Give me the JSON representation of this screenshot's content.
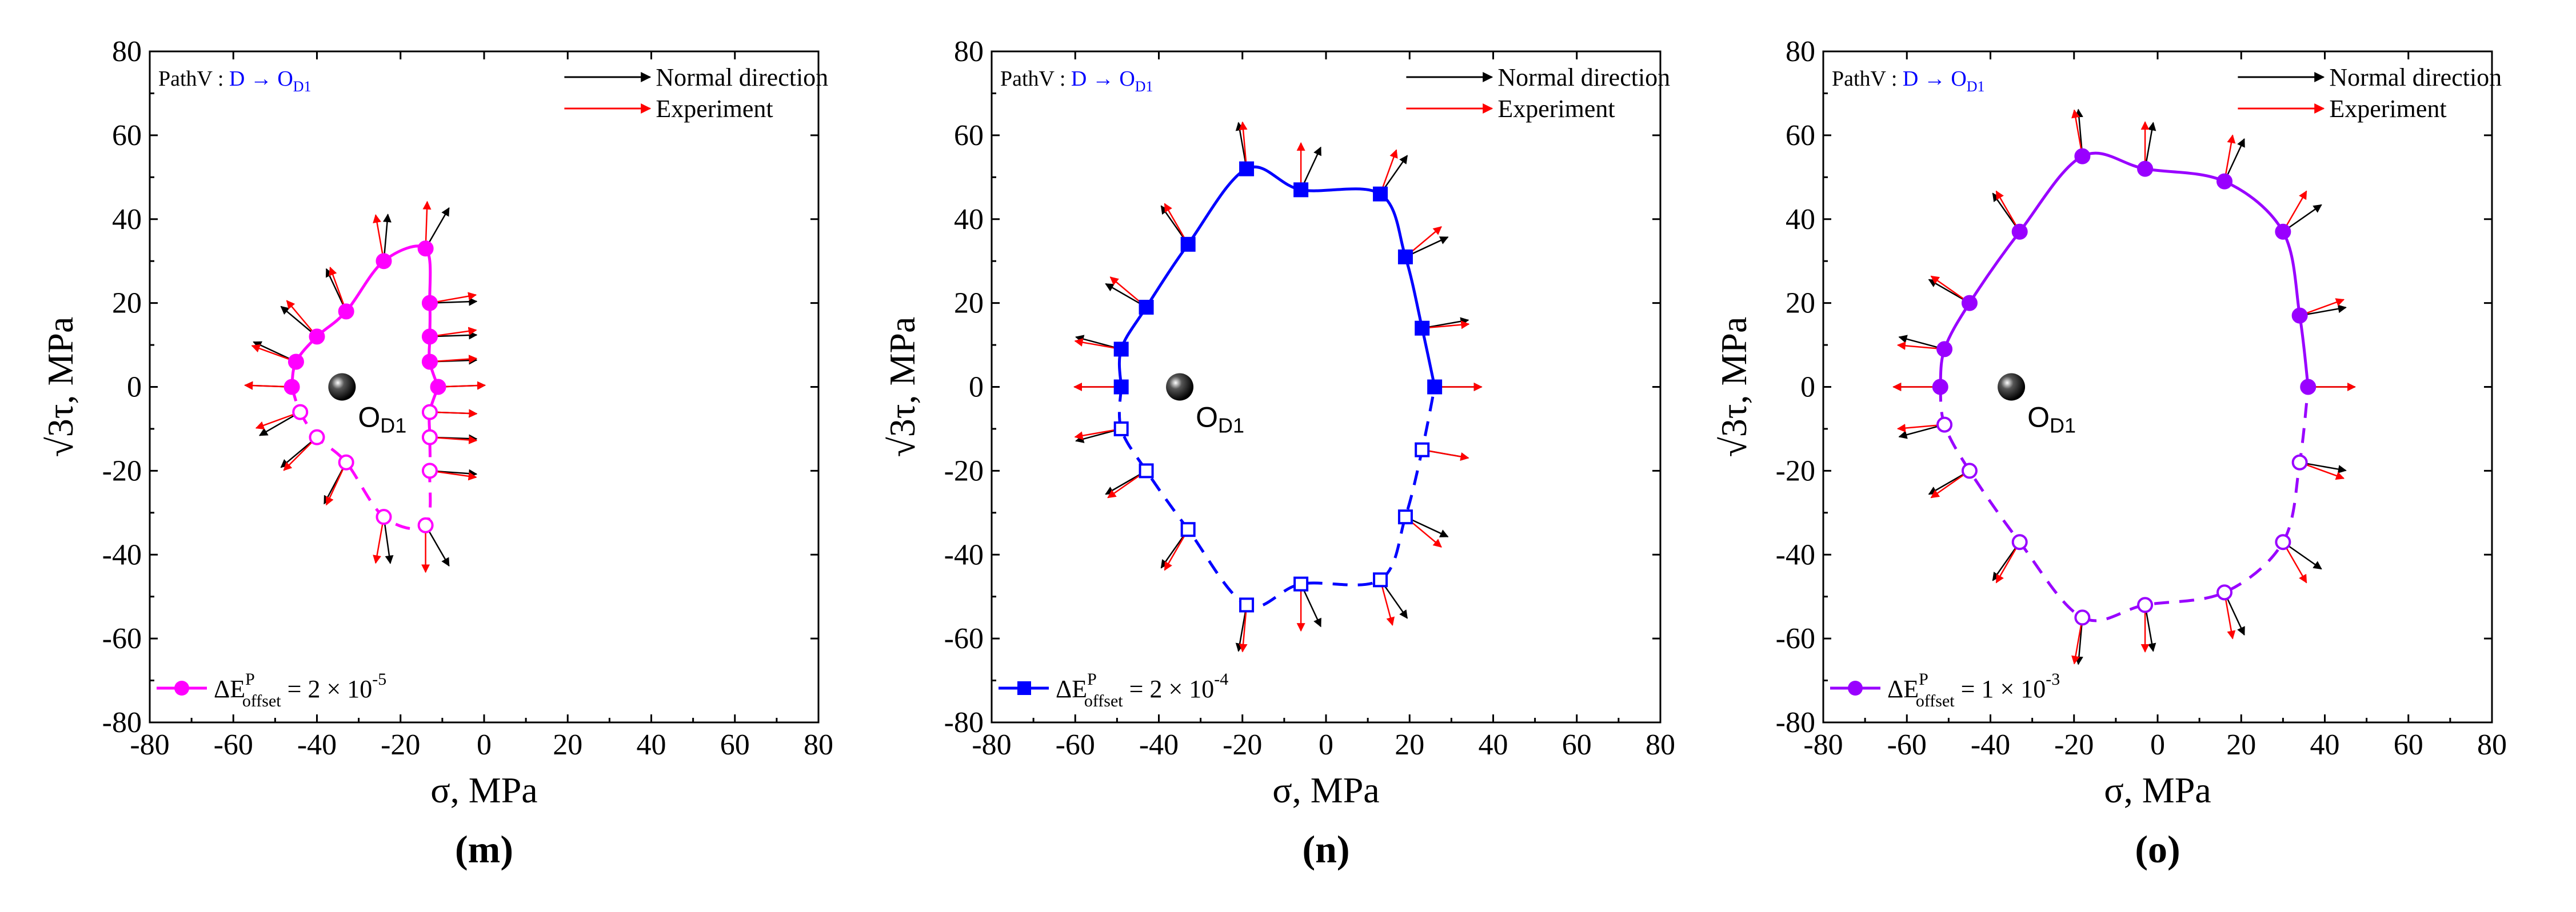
{
  "chart_data": [
    {
      "type": "scatter",
      "panel_label": "(m)",
      "xlabel": "σ, MPa",
      "ylabel": "√3τ, MPa",
      "xlim": [
        -80,
        80
      ],
      "ylim": [
        -80,
        80
      ],
      "xticks": [
        "-80",
        "-60",
        "-40",
        "-20",
        "0",
        "20",
        "40",
        "60",
        "80"
      ],
      "yticks": [
        "80",
        "60",
        "40",
        "20",
        "0",
        "-20",
        "-40",
        "-60",
        "-80"
      ],
      "color": "#ff00ff",
      "marker": "circle",
      "path_label": "PathV : ",
      "path_value": "D → O",
      "path_sub": "D1",
      "legend_normal": "Normal direction",
      "legend_experiment": "Experiment",
      "center_label": "O",
      "center_sub": "D1",
      "center": [
        -34,
        0
      ],
      "offset_text": "ΔE",
      "offset_sup": "P",
      "offset_sub": "offset",
      "offset_value": " = 2 × 10",
      "offset_exp": "-5",
      "points_upper": [
        [
          -46,
          0
        ],
        [
          -45,
          6
        ],
        [
          -40,
          12
        ],
        [
          -33,
          18
        ],
        [
          -24,
          30
        ],
        [
          -14,
          33
        ],
        [
          -13,
          20
        ],
        [
          -13,
          12
        ],
        [
          -13,
          6
        ],
        [
          -11,
          0
        ]
      ],
      "points_lower": [
        [
          -44,
          -6
        ],
        [
          -40,
          -12
        ],
        [
          -33,
          -18
        ],
        [
          -24,
          -31
        ],
        [
          -14,
          -33
        ],
        [
          -13,
          -20
        ],
        [
          -13,
          -12
        ],
        [
          -13,
          -6
        ]
      ],
      "exp_angles": [
        178,
        160,
        130,
        110,
        100,
        88,
        10,
        8,
        4,
        2,
        -160,
        -135,
        -115,
        -100,
        -90,
        -8,
        -4,
        -2
      ],
      "normal_angles": [
        178,
        155,
        140,
        115,
        85,
        60,
        2,
        2,
        2,
        2,
        -150,
        -140,
        -118,
        -82,
        -60,
        -4,
        -2,
        -2
      ]
    },
    {
      "type": "scatter",
      "panel_label": "(n)",
      "xlabel": "σ, MPa",
      "ylabel": "√3τ, MPa",
      "xlim": [
        -80,
        80
      ],
      "ylim": [
        -80,
        80
      ],
      "xticks": [
        "-80",
        "-60",
        "-40",
        "-20",
        "0",
        "20",
        "40",
        "60",
        "80"
      ],
      "yticks": [
        "80",
        "60",
        "40",
        "20",
        "0",
        "-20",
        "-40",
        "-60",
        "-80"
      ],
      "color": "#0000ff",
      "marker": "square",
      "path_label": "PathV : ",
      "path_value": "D → O",
      "path_sub": "D1",
      "legend_normal": "Normal direction",
      "legend_experiment": "Experiment",
      "center_label": "O",
      "center_sub": "D1",
      "center": [
        -35,
        0
      ],
      "offset_text": "ΔE",
      "offset_sup": "P",
      "offset_sub": "offset",
      "offset_value": " = 2 × 10",
      "offset_exp": "-4",
      "points_upper": [
        [
          -49,
          0
        ],
        [
          -49,
          9
        ],
        [
          -43,
          19
        ],
        [
          -33,
          34
        ],
        [
          -19,
          52
        ],
        [
          -6,
          47
        ],
        [
          13,
          46
        ],
        [
          19,
          31
        ],
        [
          23,
          14
        ],
        [
          26,
          0
        ]
      ],
      "points_lower": [
        [
          -49,
          -10
        ],
        [
          -43,
          -20
        ],
        [
          -33,
          -34
        ],
        [
          -19,
          -52
        ],
        [
          -6,
          -47
        ],
        [
          13,
          -46
        ],
        [
          19,
          -31
        ],
        [
          23,
          -15
        ]
      ],
      "exp_angles": [
        180,
        170,
        140,
        120,
        95,
        90,
        70,
        40,
        5,
        0,
        -170,
        -145,
        -120,
        -95,
        -90,
        -75,
        -40,
        -10
      ],
      "normal_angles": [
        180,
        165,
        150,
        125,
        100,
        65,
        55,
        25,
        10,
        0,
        -165,
        -150,
        -125,
        -100,
        -65,
        -55,
        -25,
        -10
      ]
    },
    {
      "type": "scatter",
      "panel_label": "(o)",
      "xlabel": "σ, MPa",
      "ylabel": "√3τ, MPa",
      "xlim": [
        -80,
        80
      ],
      "ylim": [
        -80,
        80
      ],
      "xticks": [
        "-80",
        "-60",
        "-40",
        "-20",
        "0",
        "20",
        "40",
        "60",
        "80"
      ],
      "yticks": [
        "80",
        "60",
        "40",
        "20",
        "0",
        "-20",
        "-40",
        "-60",
        "-80"
      ],
      "color": "#9900ff",
      "marker": "circle",
      "path_label": "PathV : ",
      "path_value": "D → O",
      "path_sub": "D1",
      "legend_normal": "Normal direction",
      "legend_experiment": "Experiment",
      "center_label": "O",
      "center_sub": "D1",
      "center": [
        -35,
        0
      ],
      "offset_text": "ΔE",
      "offset_sup": "P",
      "offset_sub": "offset",
      "offset_value": " = 1 × 10",
      "offset_exp": "-3",
      "points_upper": [
        [
          -52,
          0
        ],
        [
          -51,
          9
        ],
        [
          -45,
          20
        ],
        [
          -33,
          37
        ],
        [
          -18,
          55
        ],
        [
          -3,
          52
        ],
        [
          16,
          49
        ],
        [
          30,
          37
        ],
        [
          34,
          17
        ],
        [
          36,
          0
        ]
      ],
      "points_lower": [
        [
          -51,
          -9
        ],
        [
          -45,
          -20
        ],
        [
          -33,
          -37
        ],
        [
          -18,
          -55
        ],
        [
          -3,
          -52
        ],
        [
          16,
          -49
        ],
        [
          30,
          -37
        ],
        [
          34,
          -18
        ]
      ],
      "exp_angles": [
        180,
        175,
        145,
        120,
        100,
        90,
        80,
        60,
        20,
        0,
        -175,
        -145,
        -120,
        -100,
        -90,
        -80,
        -60,
        -20
      ],
      "normal_angles": [
        180,
        165,
        150,
        125,
        95,
        80,
        65,
        35,
        10,
        0,
        -165,
        -150,
        -125,
        -95,
        -80,
        -65,
        -35,
        -10
      ]
    }
  ]
}
